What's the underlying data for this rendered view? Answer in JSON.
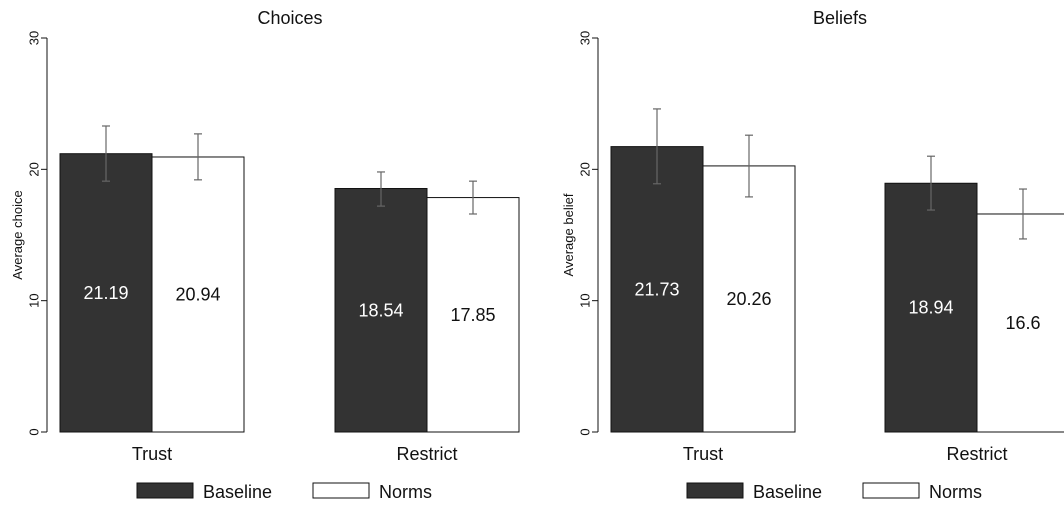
{
  "colors": {
    "baseline": "#333333",
    "norms": "#ffffff",
    "outline": "#111111",
    "errorbar": "#666666"
  },
  "legend": [
    {
      "name": "Baseline"
    },
    {
      "name": "Norms"
    }
  ],
  "chart_data": [
    {
      "type": "bar",
      "title": "Choices",
      "ylabel": "Average choice",
      "xlabel": "",
      "ylim": [
        0,
        30
      ],
      "yticks": [
        0,
        10,
        20,
        30
      ],
      "categories": [
        "Trust",
        "Restrict"
      ],
      "series": [
        {
          "name": "Baseline",
          "values": [
            21.19,
            18.54
          ],
          "labels": [
            "21.19",
            "18.54"
          ],
          "ci_low": [
            19.1,
            17.2
          ],
          "ci_high": [
            23.3,
            19.8
          ]
        },
        {
          "name": "Norms",
          "values": [
            20.94,
            17.85
          ],
          "labels": [
            "20.94",
            "17.85"
          ],
          "ci_low": [
            19.2,
            16.6
          ],
          "ci_high": [
            22.7,
            19.1
          ]
        }
      ]
    },
    {
      "type": "bar",
      "title": "Beliefs",
      "ylabel": "Average belief",
      "xlabel": "",
      "ylim": [
        0,
        30
      ],
      "yticks": [
        0,
        10,
        20,
        30
      ],
      "categories": [
        "Trust",
        "Restrict"
      ],
      "series": [
        {
          "name": "Baseline",
          "values": [
            21.73,
            18.94
          ],
          "labels": [
            "21.73",
            "18.94"
          ],
          "ci_low": [
            18.9,
            16.9
          ],
          "ci_high": [
            24.6,
            21.0
          ]
        },
        {
          "name": "Norms",
          "values": [
            20.26,
            16.6
          ],
          "labels": [
            "20.26",
            "16.6"
          ],
          "ci_low": [
            17.9,
            14.7
          ],
          "ci_high": [
            22.6,
            18.5
          ]
        }
      ]
    }
  ]
}
